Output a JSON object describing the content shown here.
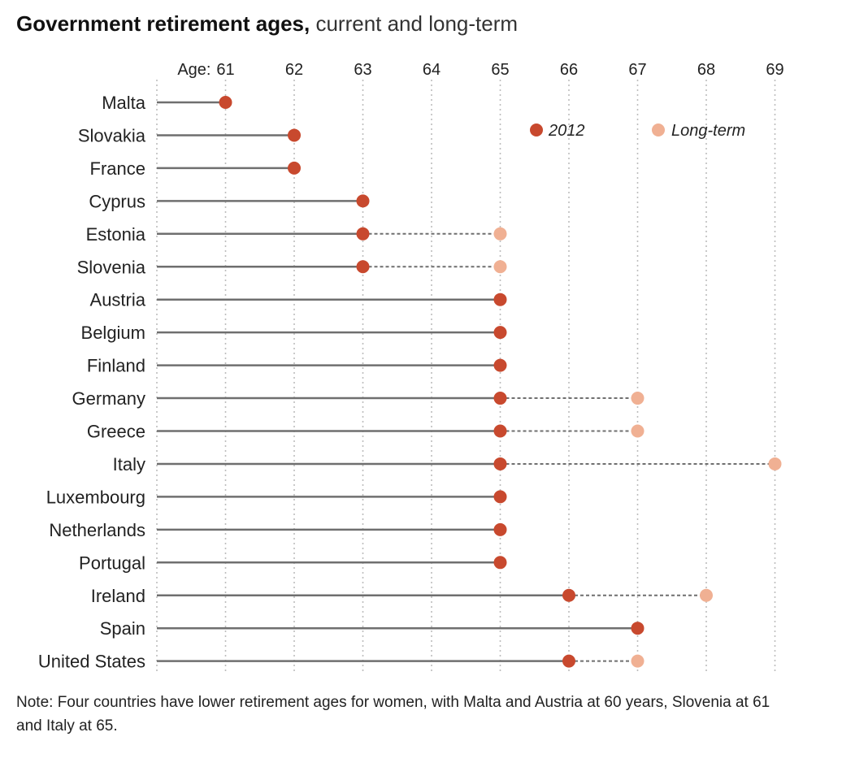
{
  "title": {
    "bold": "Government retirement ages,",
    "light": " current and long-term"
  },
  "note": "Note: Four countries have lower retirement ages for women, with Malta and Austria at 60 years, Slovenia at 61 and Italy at 65.",
  "chart_data": {
    "type": "dot-range",
    "axis_prefix": "Age:",
    "xlim": [
      60,
      69
    ],
    "ticks": [
      61,
      62,
      63,
      64,
      65,
      66,
      67,
      68,
      69
    ],
    "legend_position": "top-right",
    "series": [
      {
        "name": "2012",
        "color": "#c8492e"
      },
      {
        "name": "Long-term",
        "color": "#f0b093"
      }
    ],
    "rows": [
      {
        "country": "Malta",
        "current": 61,
        "longterm": null
      },
      {
        "country": "Slovakia",
        "current": 62,
        "longterm": null
      },
      {
        "country": "France",
        "current": 62,
        "longterm": null
      },
      {
        "country": "Cyprus",
        "current": 63,
        "longterm": null
      },
      {
        "country": "Estonia",
        "current": 63,
        "longterm": 65
      },
      {
        "country": "Slovenia",
        "current": 63,
        "longterm": 65
      },
      {
        "country": "Austria",
        "current": 65,
        "longterm": null
      },
      {
        "country": "Belgium",
        "current": 65,
        "longterm": null
      },
      {
        "country": "Finland",
        "current": 65,
        "longterm": null
      },
      {
        "country": "Germany",
        "current": 65,
        "longterm": 67
      },
      {
        "country": "Greece",
        "current": 65,
        "longterm": 67
      },
      {
        "country": "Italy",
        "current": 65,
        "longterm": 69
      },
      {
        "country": "Luxembourg",
        "current": 65,
        "longterm": null
      },
      {
        "country": "Netherlands",
        "current": 65,
        "longterm": null
      },
      {
        "country": "Portugal",
        "current": 65,
        "longterm": null
      },
      {
        "country": "Ireland",
        "current": 66,
        "longterm": 68
      },
      {
        "country": "Spain",
        "current": 67,
        "longterm": null
      },
      {
        "country": "United States",
        "current": 66,
        "longterm": 67
      }
    ]
  }
}
